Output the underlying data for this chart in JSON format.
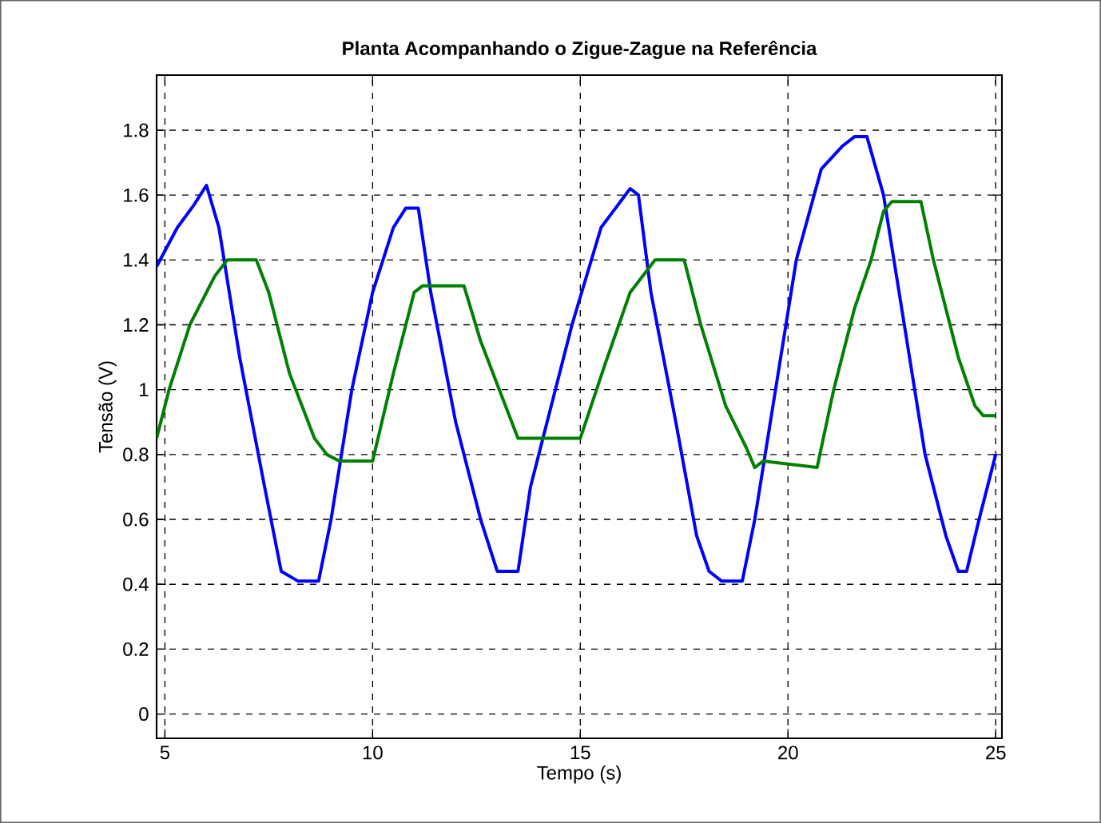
{
  "chart_data": {
    "type": "line",
    "title": "Planta Acompanhando o Zigue-Zague na Referência",
    "xlabel": "Tempo (s)",
    "ylabel": "Tensão (V)",
    "xlim": [
      4.8,
      25.15
    ],
    "ylim": [
      -0.075,
      1.97
    ],
    "xticks": [
      5,
      10,
      15,
      20,
      25
    ],
    "yticks": [
      0,
      0.2,
      0.4,
      0.6,
      0.8,
      1,
      1.2,
      1.4,
      1.6,
      1.8
    ],
    "grid": true,
    "marker": "none",
    "line_style": "solid",
    "series": [
      {
        "color": "#0000ff",
        "x": [
          4.8,
          5.3,
          5.7,
          6.0,
          6.3,
          6.8,
          7.4,
          7.8,
          8.2,
          8.7,
          9.0,
          9.5,
          10.0,
          10.5,
          10.8,
          11.1,
          11.4,
          12.0,
          12.6,
          13.0,
          13.5,
          13.8,
          14.2,
          14.8,
          15.5,
          16.2,
          16.4,
          16.7,
          17.3,
          17.8,
          18.1,
          18.4,
          18.9,
          19.2,
          19.7,
          20.2,
          20.8,
          21.3,
          21.6,
          21.9,
          22.3,
          22.8,
          23.3,
          23.8,
          24.1,
          24.3,
          24.6,
          25.0
        ],
        "values": [
          1.38,
          1.5,
          1.57,
          1.63,
          1.5,
          1.1,
          0.7,
          0.44,
          0.41,
          0.41,
          0.6,
          1.0,
          1.3,
          1.5,
          1.56,
          1.56,
          1.3,
          0.9,
          0.6,
          0.44,
          0.44,
          0.7,
          0.9,
          1.2,
          1.5,
          1.62,
          1.6,
          1.3,
          0.9,
          0.55,
          0.44,
          0.41,
          0.41,
          0.6,
          1.0,
          1.4,
          1.68,
          1.75,
          1.78,
          1.78,
          1.6,
          1.2,
          0.8,
          0.55,
          0.44,
          0.44,
          0.6,
          0.8
        ]
      },
      {
        "color": "#008000",
        "x": [
          4.8,
          5.1,
          5.6,
          6.2,
          6.5,
          7.2,
          7.5,
          8.0,
          8.6,
          8.9,
          9.2,
          10.0,
          10.5,
          11.0,
          11.2,
          12.2,
          12.6,
          13.2,
          13.5,
          15.0,
          15.6,
          16.2,
          16.8,
          17.5,
          17.9,
          18.5,
          19.0,
          19.2,
          19.4,
          20.7,
          21.1,
          21.6,
          22.0,
          22.3,
          22.5,
          23.2,
          23.5,
          24.1,
          24.5,
          24.7,
          25.0
        ],
        "values": [
          0.85,
          1.0,
          1.2,
          1.35,
          1.4,
          1.4,
          1.3,
          1.05,
          0.85,
          0.8,
          0.78,
          0.78,
          1.05,
          1.3,
          1.32,
          1.32,
          1.15,
          0.95,
          0.85,
          0.85,
          1.08,
          1.3,
          1.4,
          1.4,
          1.2,
          0.95,
          0.82,
          0.76,
          0.78,
          0.76,
          1.0,
          1.25,
          1.4,
          1.55,
          1.58,
          1.58,
          1.4,
          1.1,
          0.95,
          0.92,
          0.92
        ]
      }
    ]
  }
}
